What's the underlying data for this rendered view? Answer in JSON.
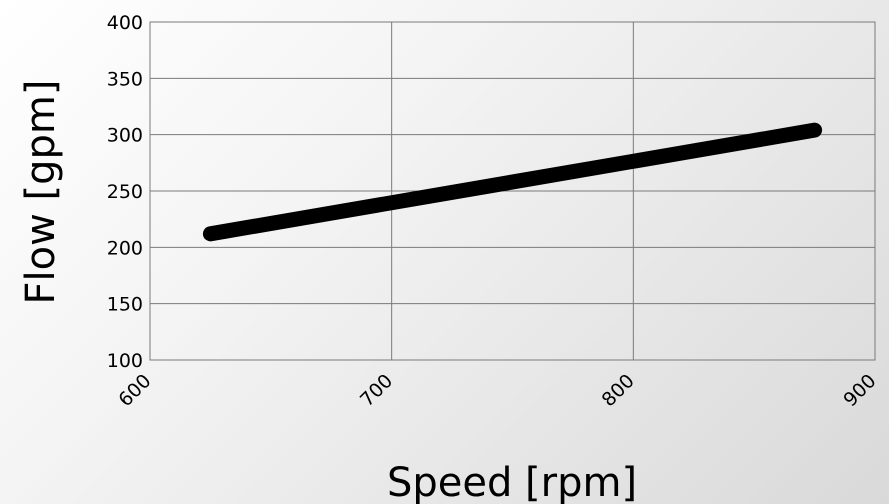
{
  "chart_data": {
    "type": "line",
    "title": "",
    "xlabel": "Speed [rpm]",
    "ylabel": "Flow [gpm]",
    "xlim": [
      600,
      900
    ],
    "ylim": [
      100,
      400
    ],
    "x_ticks": [
      "600",
      "700",
      "800",
      "900"
    ],
    "y_ticks": [
      "100",
      "150",
      "200",
      "250",
      "300",
      "350",
      "400"
    ],
    "grid": true,
    "legend": "none",
    "series": [
      {
        "x": [
          625,
          875
        ],
        "y": [
          212,
          304
        ],
        "color": "#000000"
      }
    ]
  }
}
